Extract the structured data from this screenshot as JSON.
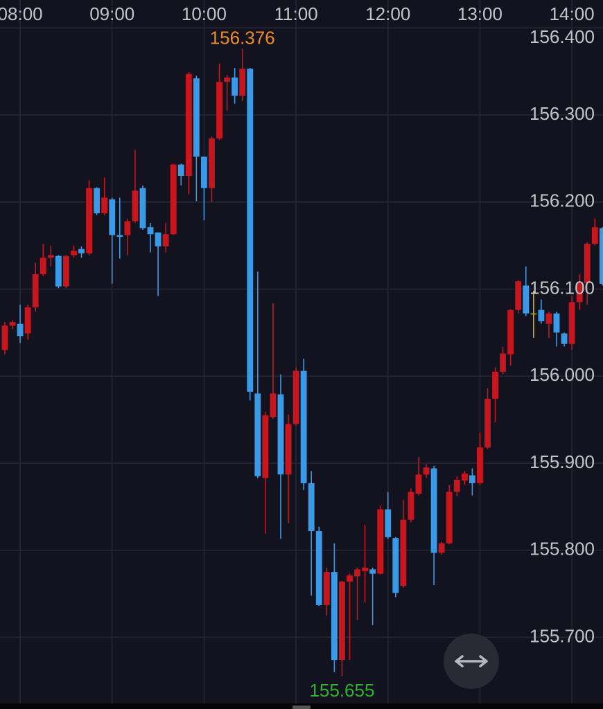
{
  "chart_data": {
    "type": "candlestick",
    "categories": [
      null,
      null,
      null,
      null,
      null,
      null,
      null,
      null,
      null,
      null,
      null,
      null,
      null,
      null,
      null,
      null,
      null,
      null,
      null,
      null,
      null,
      null,
      null,
      null,
      null,
      null,
      null,
      null,
      null,
      null,
      null,
      null,
      null,
      null,
      null,
      null,
      null,
      null,
      null,
      null,
      null,
      null,
      null,
      null,
      null,
      null,
      null,
      null,
      null,
      null,
      null,
      null,
      null,
      null,
      null,
      null,
      null,
      null,
      null,
      null,
      null,
      null,
      null,
      null,
      null,
      null,
      null,
      null,
      null,
      null,
      null,
      null,
      null,
      null,
      null,
      null,
      null,
      null,
      null
    ],
    "open": [
      156.03,
      156.058,
      156.06,
      156.049,
      156.079,
      156.117,
      156.136,
      156.138,
      156.103,
      156.139,
      156.146,
      156.141,
      156.216,
      156.187,
      156.203,
      156.162,
      156.162,
      156.178,
      156.216,
      156.171,
      156.165,
      156.149,
      156.163,
      156.243,
      156.23,
      156.342,
      156.252,
      156.216,
      156.273,
      156.338,
      156.343,
      156.322,
      156.353,
      155.98,
      155.883,
      155.953,
      155.979,
      155.887,
      155.945,
      156.006,
      155.877,
      155.822,
      155.737,
      155.775,
      155.674,
      155.764,
      155.77,
      155.776,
      155.778,
      155.773,
      155.847,
      155.814,
      155.759,
      155.835,
      155.865,
      155.887,
      155.894,
      155.797,
      155.808,
      155.867,
      155.88,
      155.886,
      155.877,
      155.918,
      155.974,
      156.005,
      156.025,
      156.076,
      156.104,
      156.072,
      156.076,
      156.06,
      156.072,
      156.049,
      156.037,
      156.085,
      156.107,
      156.152,
      156.17
    ],
    "high": [
      156.062,
      156.064,
      156.082,
      156.082,
      156.13,
      156.152,
      156.15,
      156.139,
      156.139,
      156.15,
      156.149,
      156.225,
      156.217,
      156.228,
      156.205,
      156.205,
      156.181,
      156.26,
      156.219,
      156.176,
      156.165,
      156.176,
      156.244,
      156.244,
      156.349,
      156.345,
      156.252,
      156.275,
      156.359,
      156.346,
      156.354,
      156.376,
      156.354,
      156.12,
      155.959,
      156.084,
      156.002,
      155.956,
      156.01,
      156.02,
      155.891,
      155.827,
      155.78,
      155.808,
      155.765,
      155.773,
      155.78,
      155.829,
      155.78,
      155.851,
      155.867,
      155.815,
      155.858,
      155.871,
      155.907,
      155.899,
      155.897,
      155.81,
      155.875,
      155.885,
      155.891,
      155.894,
      155.935,
      155.986,
      156.01,
      156.034,
      156.077,
      156.11,
      156.126,
      156.098,
      156.088,
      156.074,
      156.074,
      156.05,
      156.092,
      156.117,
      156.154,
      156.181,
      156.171
    ],
    "low": [
      156.025,
      156.054,
      156.038,
      156.042,
      156.074,
      156.115,
      156.126,
      156.101,
      156.101,
      156.136,
      156.136,
      156.139,
      156.185,
      156.185,
      156.106,
      156.135,
      156.139,
      156.176,
      156.168,
      156.142,
      156.092,
      156.142,
      156.162,
      156.219,
      156.209,
      156.201,
      156.179,
      156.2,
      156.271,
      156.305,
      156.313,
      156.316,
      155.972,
      155.883,
      155.819,
      155.951,
      155.813,
      155.831,
      155.943,
      155.869,
      155.748,
      155.736,
      155.725,
      155.66,
      155.655,
      155.674,
      155.72,
      155.74,
      155.714,
      155.772,
      155.813,
      155.746,
      155.757,
      155.832,
      155.863,
      155.883,
      155.76,
      155.795,
      155.807,
      155.862,
      155.875,
      155.863,
      155.875,
      155.916,
      155.947,
      156.002,
      156.012,
      156.072,
      156.069,
      156.044,
      156.06,
      156.044,
      156.034,
      156.034,
      156.03,
      156.076,
      156.082,
      156.15,
      156.104
    ],
    "close": [
      156.058,
      156.062,
      156.046,
      156.079,
      156.117,
      156.136,
      156.139,
      156.103,
      156.138,
      156.144,
      156.141,
      156.216,
      156.187,
      156.205,
      156.162,
      156.16,
      156.178,
      156.213,
      156.17,
      156.163,
      156.149,
      156.163,
      156.243,
      156.23,
      156.347,
      156.252,
      156.216,
      156.273,
      156.338,
      156.343,
      156.322,
      156.353,
      155.982,
      155.885,
      155.955,
      155.98,
      155.887,
      155.945,
      156.006,
      155.877,
      155.822,
      155.737,
      155.775,
      155.674,
      155.764,
      155.771,
      155.778,
      155.78,
      155.773,
      155.847,
      155.815,
      155.751,
      155.835,
      155.867,
      155.887,
      155.895,
      155.797,
      155.808,
      155.867,
      155.881,
      155.888,
      155.877,
      155.918,
      155.974,
      156.005,
      156.026,
      156.076,
      156.109,
      156.072,
      156.072,
      156.063,
      156.072,
      156.05,
      156.037,
      156.085,
      156.107,
      156.152,
      156.171,
      156.106
    ],
    "up_color": "#c8161e",
    "down_color": "#3a9ae8",
    "doji_color": "#c8b428",
    "high_color": "#f08a24",
    "low_color": "#2fb02f",
    "xlim": [
      -0.63,
      78.06
    ],
    "xticks": [
      {
        "value": 2,
        "label": "08:00"
      },
      {
        "value": 14,
        "label": "09:00"
      },
      {
        "value": 26,
        "label": "10:00"
      },
      {
        "value": 38,
        "label": "11:00"
      },
      {
        "value": 50,
        "label": "12:00"
      },
      {
        "value": 62,
        "label": "13:00"
      },
      {
        "value": 74,
        "label": "14:00"
      }
    ],
    "ylim": [
      155.624,
      156.432
    ],
    "yticks": [
      {
        "value": 156.4,
        "label": "156.400"
      },
      {
        "value": 156.3,
        "label": "156.300"
      },
      {
        "value": 156.2,
        "label": "156.200"
      },
      {
        "value": 156.1,
        "label": "156.100"
      },
      {
        "value": 156.0,
        "label": "156.000"
      },
      {
        "value": 155.9,
        "label": "155.900"
      },
      {
        "value": 155.8,
        "label": "155.800"
      },
      {
        "value": 155.7,
        "label": "155.700"
      }
    ],
    "grid": true
  }
}
